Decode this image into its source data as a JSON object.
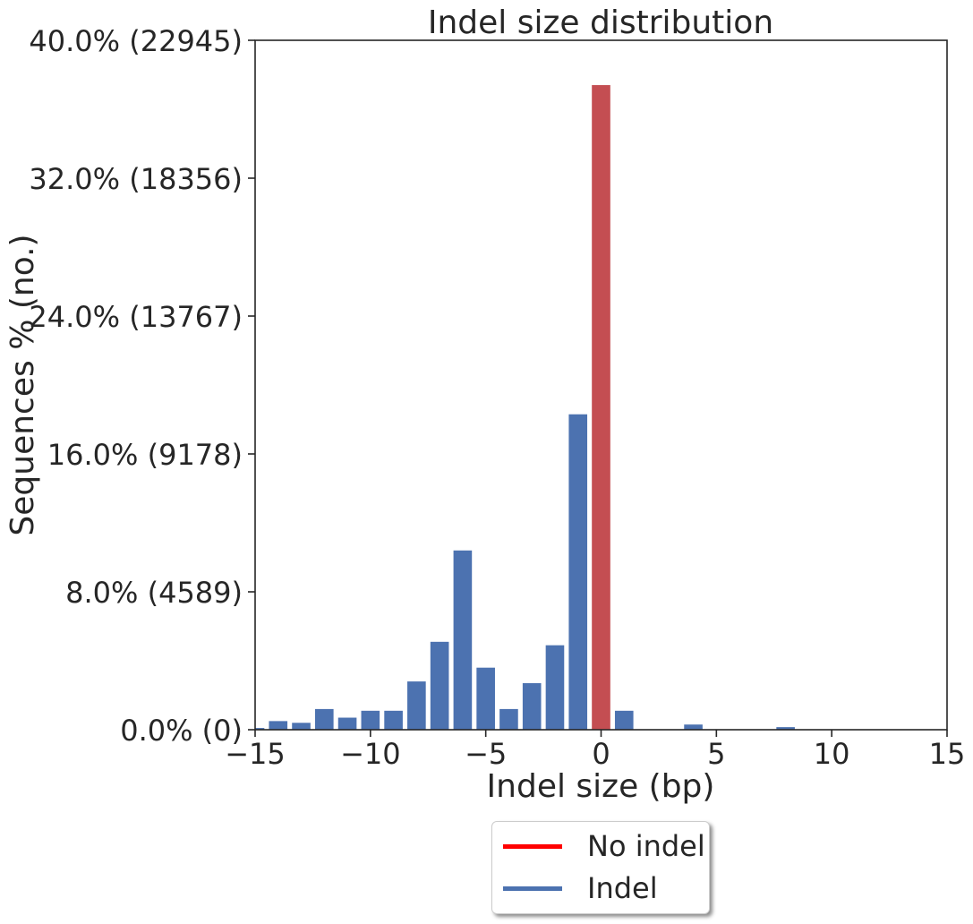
{
  "chart_data": {
    "type": "bar",
    "title": "Indel size distribution",
    "xlabel": "Indel size (bp)",
    "ylabel": "Sequences % (no.)",
    "xlim": [
      -15,
      15
    ],
    "ylim": [
      0,
      40
    ],
    "xticks": [
      -15,
      -10,
      -5,
      0,
      5,
      10,
      15
    ],
    "xtick_labels": [
      "−15",
      "−10",
      "−5",
      "0",
      "5",
      "10",
      "15"
    ],
    "yticks": [
      0,
      8,
      16,
      24,
      32,
      40
    ],
    "ytick_labels": [
      "0.0% (0)",
      "8.0% (4589)",
      "16.0% (9178)",
      "24.0% (13767)",
      "32.0% (18356)",
      "40.0% (22945)"
    ],
    "grid": false,
    "legend_position": "bottom-center",
    "series": [
      {
        "name": "Indel",
        "color": "#4C72B0",
        "x": [
          -15,
          -14,
          -13,
          -12,
          -11,
          -10,
          -9,
          -8,
          -7,
          -6,
          -5,
          -4,
          -3,
          -2,
          -1,
          1,
          4,
          8
        ],
        "values": [
          0.1,
          0.5,
          0.4,
          1.2,
          0.7,
          1.1,
          1.1,
          2.8,
          5.1,
          10.4,
          3.6,
          1.2,
          2.7,
          4.9,
          18.3,
          1.1,
          0.3,
          0.15
        ]
      },
      {
        "name": "No indel",
        "color": "#C44E52",
        "x": [
          0
        ],
        "values": [
          37.4
        ]
      }
    ]
  },
  "legend": {
    "items": [
      {
        "label": "No indel",
        "color": "#FF0000"
      },
      {
        "label": "Indel",
        "color": "#4C72B0"
      }
    ]
  }
}
